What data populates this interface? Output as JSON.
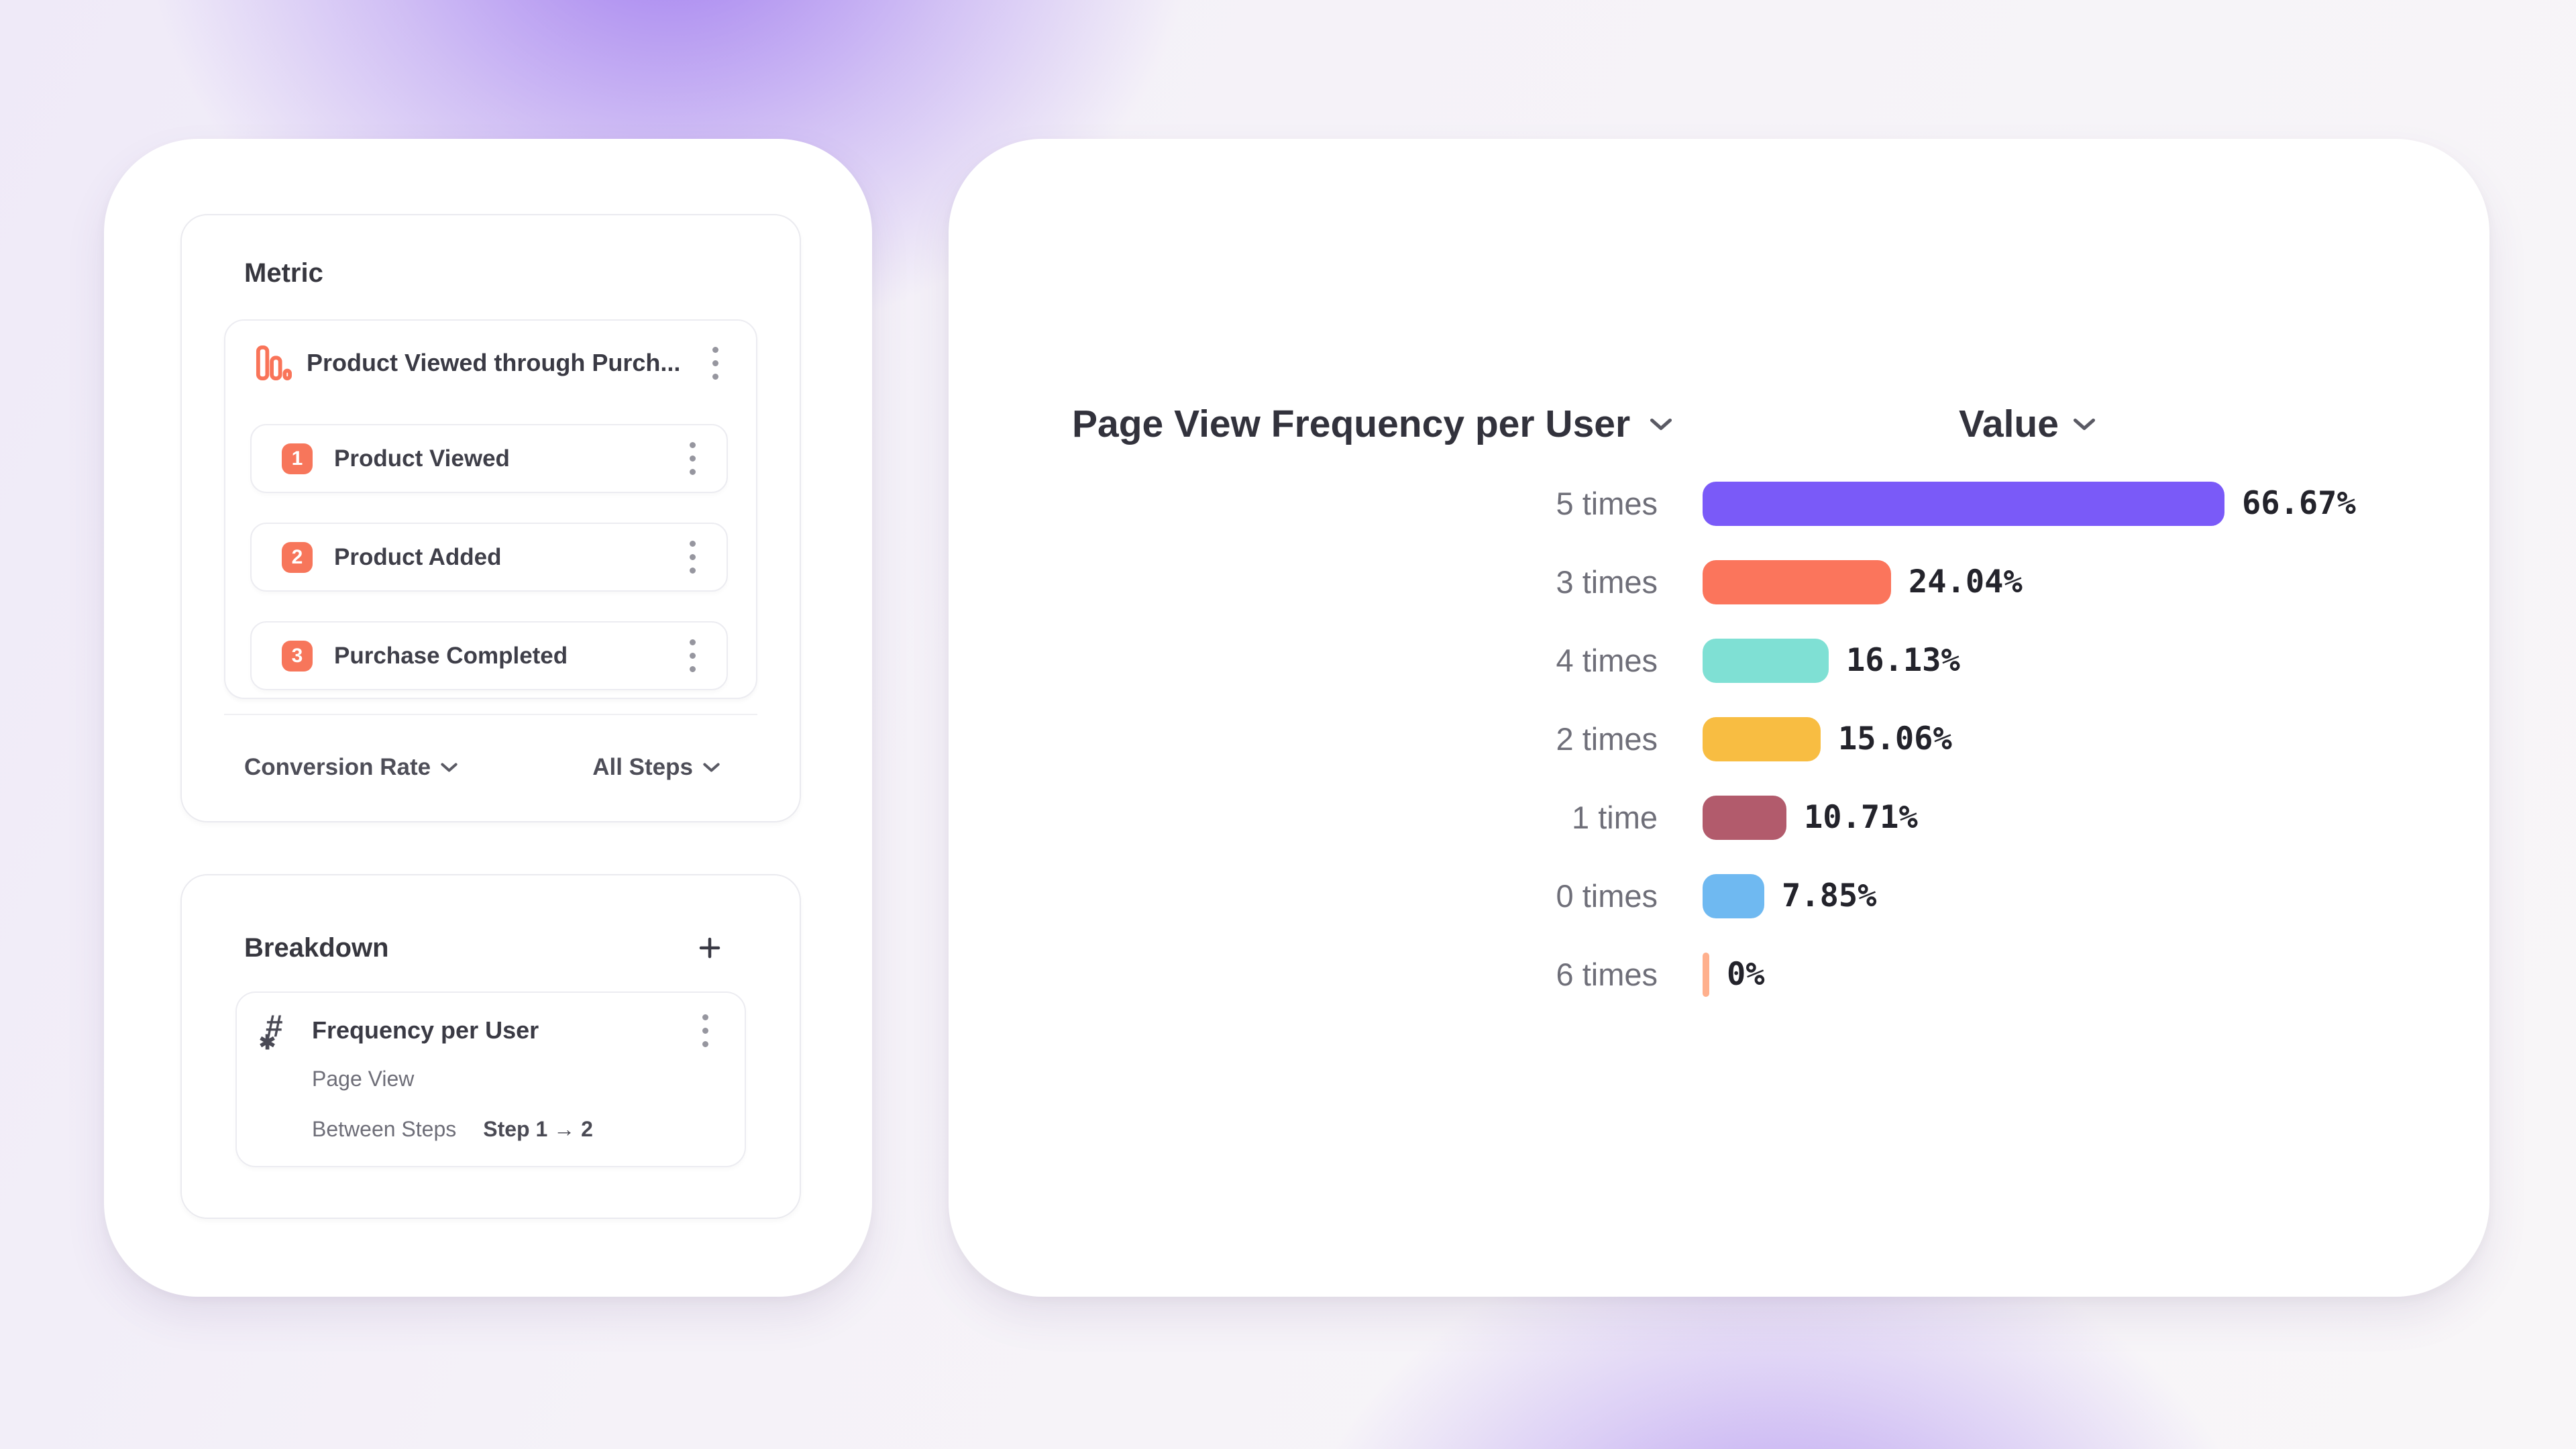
{
  "left_panel": {
    "metric_card": {
      "title": "Metric",
      "funnel": {
        "name": "Product Viewed through Purch...",
        "icon": "funnel-chart-icon",
        "icon_color": "#F97459",
        "badge_color": "#F7765B",
        "steps": [
          {
            "number": "1",
            "label": "Product Viewed"
          },
          {
            "number": "2",
            "label": "Product Added"
          },
          {
            "number": "3",
            "label": "Purchase Completed"
          }
        ]
      },
      "footer": {
        "measurement": "Conversion Rate",
        "steps_filter": "All Steps"
      }
    },
    "breakdown_card": {
      "title": "Breakdown",
      "add_icon": "plus-icon",
      "item": {
        "icon": "numeric-property-icon",
        "name": "Frequency per User",
        "event": "Page View",
        "scope_label": "Between Steps",
        "scope_value": "Step 1 → 2"
      }
    }
  },
  "chart": {
    "title": "Page View Frequency per User",
    "value_header": "Value"
  },
  "chart_data": {
    "type": "bar",
    "orientation": "horizontal",
    "title": "Page View Frequency per User",
    "value_axis_label": "Value",
    "categories": [
      "5 times",
      "3 times",
      "4 times",
      "2 times",
      "1 time",
      "0 times",
      "6 times"
    ],
    "values": [
      66.67,
      24.04,
      16.13,
      15.06,
      10.71,
      7.85,
      0
    ],
    "value_labels": [
      "66.67%",
      "24.04%",
      "16.13%",
      "15.06%",
      "10.71%",
      "7.85%",
      "0%"
    ],
    "colors": [
      "#7A5AF8",
      "#FB755C",
      "#7FE0D4",
      "#F8BD42",
      "#B25B6C",
      "#6FB9F1",
      "#FFB08D"
    ],
    "xlim": [
      0,
      66.67
    ],
    "grid": false,
    "legend": "none"
  }
}
